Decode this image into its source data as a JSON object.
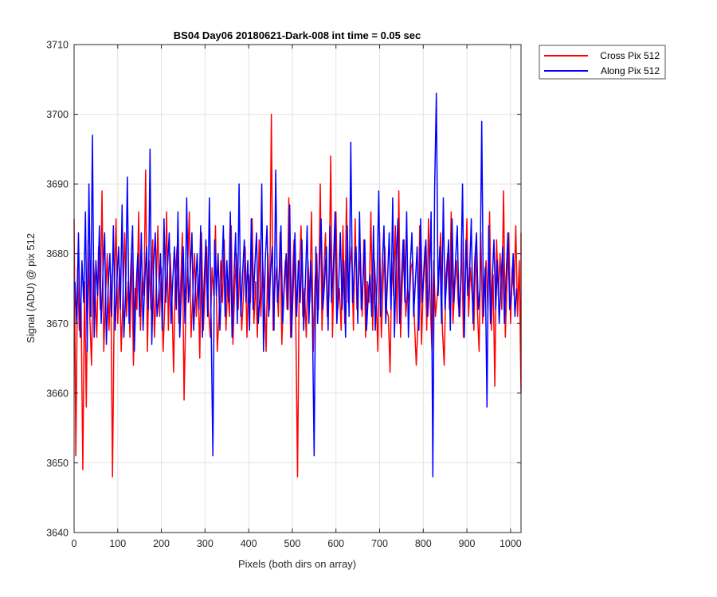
{
  "chart_data": {
    "type": "line",
    "title": "BS04 Day06 20180621-Dark-008 int time = 0.05 sec",
    "xlabel": "Pixels (both dirs on array)",
    "ylabel": "Signal (ADU) @ pix 512",
    "xlim": [
      0,
      1024
    ],
    "ylim": [
      3640,
      3710
    ],
    "xticks": [
      0,
      100,
      200,
      300,
      400,
      500,
      600,
      700,
      800,
      900,
      1000
    ],
    "yticks": [
      3640,
      3650,
      3660,
      3670,
      3680,
      3690,
      3700,
      3710
    ],
    "grid": true,
    "legend_position": "outside top-right",
    "series": [
      {
        "name": "Cross Pix 512",
        "color": "#ff0000",
        "sample_step": 4,
        "x_start": 0,
        "y": [
          3685,
          3651,
          3678,
          3669,
          3673,
          3649,
          3676,
          3658,
          3682,
          3671,
          3664,
          3679,
          3675,
          3668,
          3681,
          3672,
          3689,
          3666,
          3674,
          3680,
          3669,
          3677,
          3648,
          3673,
          3685,
          3670,
          3678,
          3666,
          3674,
          3683,
          3671,
          3676,
          3668,
          3680,
          3664,
          3675,
          3672,
          3686,
          3669,
          3677,
          3674,
          3692,
          3666,
          3679,
          3672,
          3682,
          3668,
          3675,
          3684,
          3671,
          3678,
          3666,
          3673,
          3686,
          3669,
          3680,
          3674,
          3663,
          3677,
          3681,
          3670,
          3675,
          3683,
          3659,
          3672,
          3678,
          3686,
          3668,
          3674,
          3680,
          3671,
          3677,
          3665,
          3683,
          3669,
          3675,
          3681,
          3672,
          3668,
          3678,
          3674,
          3684,
          3666,
          3671,
          3679,
          3673,
          3682,
          3669,
          3676,
          3671,
          3684,
          3667,
          3675,
          3680,
          3672,
          3678,
          3669,
          3674,
          3681,
          3668,
          3677,
          3673,
          3685,
          3670,
          3676,
          3668,
          3682,
          3671,
          3679,
          3674,
          3666,
          3680,
          3672,
          3700,
          3669,
          3675,
          3678,
          3671,
          3683,
          3667,
          3674,
          3679,
          3672,
          3688,
          3668,
          3676,
          3682,
          3670,
          3648,
          3677,
          3684,
          3671,
          3675,
          3668,
          3679,
          3673,
          3686,
          3666,
          3676,
          3680,
          3672,
          3690,
          3669,
          3677,
          3683,
          3671,
          3674,
          3694,
          3668,
          3679,
          3686,
          3672,
          3675,
          3669,
          3684,
          3670,
          3688,
          3673,
          3678,
          3681,
          3669,
          3685,
          3672,
          3676,
          3680,
          3671,
          3682,
          3668,
          3676,
          3673,
          3686,
          3669,
          3679,
          3674,
          3666,
          3683,
          3668,
          3676,
          3681,
          3672,
          3671,
          3663,
          3679,
          3674,
          3684,
          3670,
          3689,
          3668,
          3676,
          3682,
          3671,
          3675,
          3673,
          3678,
          3679,
          3670,
          3664,
          3670,
          3684,
          3667,
          3676,
          3681,
          3669,
          3685,
          3673,
          3666,
          3679,
          3671,
          3674,
          3678,
          3683,
          3669,
          3664,
          3677,
          3680,
          3672,
          3686,
          3670,
          3675,
          3679,
          3673,
          3671,
          3682,
          3668,
          3676,
          3685,
          3671,
          3678,
          3674,
          3669,
          3681,
          3672,
          3666,
          3683,
          3670,
          3676,
          3679,
          3672,
          3686,
          3669,
          3677,
          3661,
          3682,
          3674,
          3680,
          3672,
          3689,
          3668,
          3676,
          3683,
          3670,
          3678,
          3674,
          3684,
          3671,
          3679,
          3660,
          3668,
          3683,
          3674
        ]
      },
      {
        "name": "Along Pix 512",
        "color": "#0000ff",
        "sample_step": 4,
        "x_start": 2,
        "y": [
          3676,
          3670,
          3683,
          3668,
          3679,
          3673,
          3686,
          3666,
          3690,
          3671,
          3697,
          3668,
          3679,
          3674,
          3684,
          3670,
          3677,
          3683,
          3667,
          3675,
          3680,
          3671,
          3684,
          3669,
          3676,
          3681,
          3672,
          3687,
          3668,
          3674,
          3691,
          3670,
          3678,
          3684,
          3666,
          3675,
          3680,
          3671,
          3683,
          3669,
          3676,
          3681,
          3672,
          3695,
          3667,
          3678,
          3683,
          3671,
          3674,
          3680,
          3669,
          3685,
          3673,
          3678,
          3683,
          3670,
          3676,
          3681,
          3672,
          3686,
          3668,
          3675,
          3681,
          3670,
          3688,
          3673,
          3677,
          3683,
          3669,
          3675,
          3680,
          3672,
          3684,
          3668,
          3676,
          3682,
          3671,
          3688,
          3670,
          3651,
          3682,
          3674,
          3680,
          3669,
          3676,
          3684,
          3671,
          3679,
          3673,
          3686,
          3668,
          3676,
          3683,
          3670,
          3690,
          3671,
          3677,
          3682,
          3673,
          3679,
          3669,
          3685,
          3672,
          3678,
          3683,
          3670,
          3674,
          3690,
          3666,
          3679,
          3684,
          3671,
          3677,
          3681,
          3669,
          3692,
          3673,
          3677,
          3684,
          3670,
          3676,
          3680,
          3672,
          3687,
          3668,
          3675,
          3683,
          3671,
          3679,
          3673,
          3682,
          3669,
          3676,
          3684,
          3670,
          3679,
          3671,
          3651,
          3681,
          3670,
          3678,
          3685,
          3672,
          3676,
          3681,
          3669,
          3684,
          3673,
          3678,
          3686,
          3670,
          3675,
          3683,
          3672,
          3679,
          3668,
          3684,
          3671,
          3696,
          3673,
          3678,
          3681,
          3670,
          3686,
          3672,
          3676,
          3682,
          3669,
          3674,
          3677,
          3671,
          3684,
          3669,
          3676,
          3689,
          3671,
          3678,
          3684,
          3670,
          3676,
          3683,
          3672,
          3688,
          3668,
          3679,
          3685,
          3670,
          3676,
          3682,
          3673,
          3686,
          3668,
          3678,
          3683,
          3671,
          3676,
          3681,
          3669,
          3685,
          3673,
          3678,
          3682,
          3671,
          3676,
          3686,
          3648,
          3689,
          3703,
          3674,
          3681,
          3670,
          3688,
          3672,
          3677,
          3682,
          3669,
          3685,
          3673,
          3679,
          3684,
          3671,
          3676,
          3690,
          3668,
          3682,
          3674,
          3677,
          3685,
          3670,
          3679,
          3683,
          3672,
          3675,
          3699,
          3671,
          3678,
          3658,
          3684,
          3670,
          3676,
          3682,
          3672,
          3679,
          3670,
          3676,
          3681,
          3670,
          3677,
          3683,
          3672,
          3674,
          3680,
          3671,
          3675
        ]
      }
    ]
  }
}
